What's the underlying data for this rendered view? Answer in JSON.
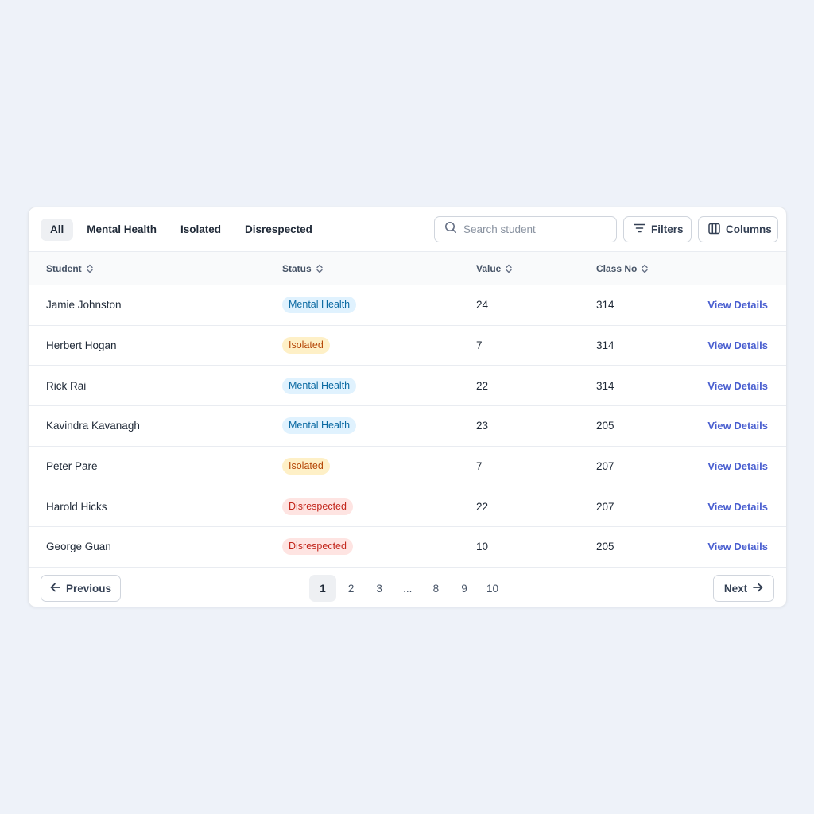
{
  "tabs": [
    {
      "label": "All",
      "active": true
    },
    {
      "label": "Mental Health",
      "active": false
    },
    {
      "label": "Isolated",
      "active": false
    },
    {
      "label": "Disrespected",
      "active": false
    }
  ],
  "search": {
    "placeholder": "Search student",
    "value": "",
    "icon": "search-icon"
  },
  "toolbar": {
    "filters_label": "Filters",
    "filters_icon": "filter-icon",
    "columns_label": "Columns",
    "columns_icon": "columns-icon"
  },
  "table": {
    "columns": [
      "Student",
      "Status",
      "Value",
      "Class No"
    ],
    "action_label": "View Details",
    "rows": [
      {
        "student": "Jamie Johnston",
        "status": "Mental Health",
        "value": "24",
        "class_no": "314"
      },
      {
        "student": "Herbert Hogan",
        "status": "Isolated",
        "value": "7",
        "class_no": "314"
      },
      {
        "student": "Rick Rai",
        "status": "Mental Health",
        "value": "22",
        "class_no": "314"
      },
      {
        "student": "Kavindra Kavanagh",
        "status": "Mental Health",
        "value": "23",
        "class_no": "205"
      },
      {
        "student": "Peter Pare",
        "status": "Isolated",
        "value": "7",
        "class_no": "207"
      },
      {
        "student": "Harold Hicks",
        "status": "Disrespected",
        "value": "22",
        "class_no": "207"
      },
      {
        "student": "George Guan",
        "status": "Disrespected",
        "value": "10",
        "class_no": "205"
      }
    ]
  },
  "status_colors": {
    "Mental Health": {
      "bg": "#e0f2fe",
      "fg": "#0b6aa2"
    },
    "Isolated": {
      "bg": "#fef0c7",
      "fg": "#b54708"
    },
    "Disrespected": {
      "bg": "#fee4e2",
      "fg": "#c3261c"
    }
  },
  "pagination": {
    "previous_label": "Previous",
    "next_label": "Next",
    "pages": [
      "1",
      "2",
      "3",
      "...",
      "8",
      "9",
      "10"
    ],
    "current": "1"
  }
}
